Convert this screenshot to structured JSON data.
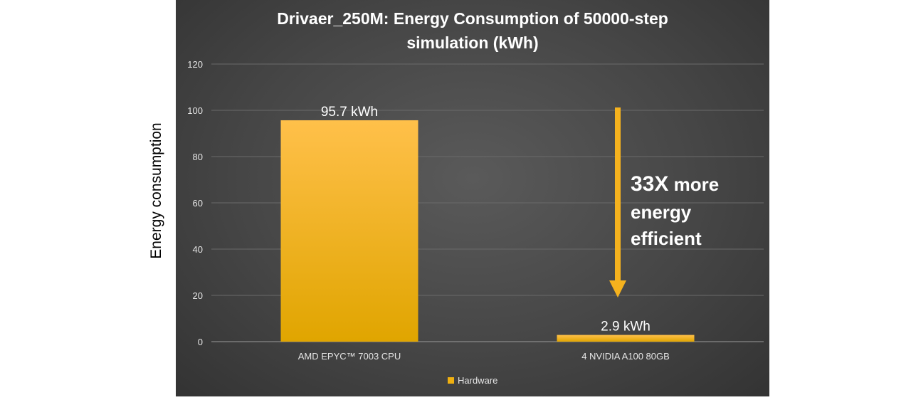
{
  "chart_data": {
    "type": "bar",
    "title_line1": "Drivaer_250M: Energy Consumption of 50000-step",
    "title_line2": "simulation (kWh)",
    "ylabel": "Energy consumption",
    "xlabel": "",
    "categories": [
      "AMD EPYC™ 7003 CPU",
      "4 NVIDIA A100 80GB"
    ],
    "series": [
      {
        "name": "Hardware",
        "values": [
          95.7,
          2.9
        ],
        "data_labels": [
          "95.7 kWh",
          "2.9 kWh"
        ]
      }
    ],
    "ylim": [
      0,
      120
    ],
    "yticks": [
      0,
      20,
      40,
      60,
      80,
      100,
      120
    ],
    "grid": true,
    "legend": "bottom-center",
    "annotation": {
      "bold": "33X",
      "rest_line1": " more",
      "line2": "energy",
      "line3": "efficient"
    },
    "colors": {
      "bar_top": "#ffc04a",
      "bar_bottom": "#e0a500",
      "arrow": "#f5b21e",
      "panel": "#474747",
      "text": "#ffffff",
      "tick_text": "#e6e6e6",
      "grid": "#6a6a6a"
    }
  }
}
